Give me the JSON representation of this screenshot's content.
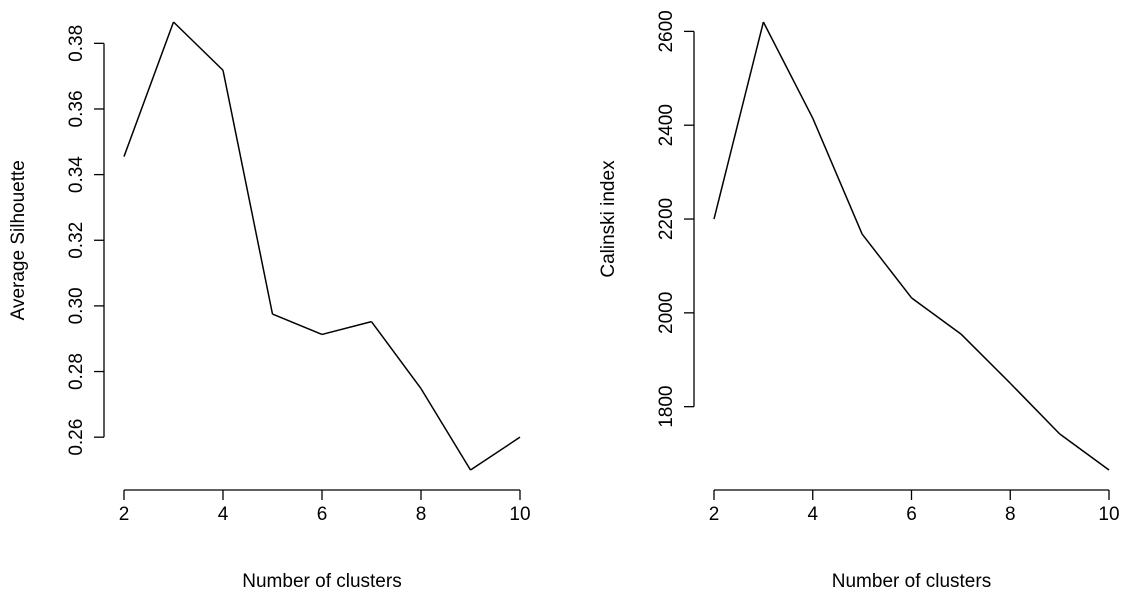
{
  "chart_data": [
    {
      "type": "line",
      "xlabel": "Number of clusters",
      "ylabel": "Average Silhouette",
      "x": [
        2,
        3,
        4,
        5,
        6,
        7,
        8,
        9,
        10
      ],
      "series": [
        {
          "values": [
            0.3455,
            0.3865,
            0.3718,
            0.2975,
            0.2913,
            0.2952,
            0.2748,
            0.25,
            0.26
          ]
        }
      ],
      "xticks": [
        2,
        4,
        6,
        8,
        10
      ],
      "yticks": [
        0.26,
        0.28,
        0.3,
        0.32,
        0.34,
        0.36,
        0.38
      ],
      "ytick_labels": [
        "0.26",
        "0.28",
        "0.30",
        "0.32",
        "0.34",
        "0.36",
        "0.38"
      ],
      "xlim": [
        2,
        10
      ],
      "ylim": [
        0.25,
        0.3865
      ],
      "grid": false
    },
    {
      "type": "line",
      "xlabel": "Number of clusters",
      "ylabel": "Calinski index",
      "x": [
        2,
        3,
        4,
        5,
        6,
        7,
        8,
        9,
        10
      ],
      "series": [
        {
          "values": [
            2200,
            2620,
            2415,
            2168,
            2032,
            1955,
            1850,
            1742,
            1665
          ]
        }
      ],
      "xticks": [
        2,
        4,
        6,
        8,
        10
      ],
      "yticks": [
        1800,
        2000,
        2200,
        2400,
        2600
      ],
      "ytick_labels": [
        "1800",
        "2000",
        "2200",
        "2400",
        "2600"
      ],
      "xlim": [
        2,
        10
      ],
      "ylim": [
        1665,
        2620
      ],
      "grid": false
    }
  ]
}
